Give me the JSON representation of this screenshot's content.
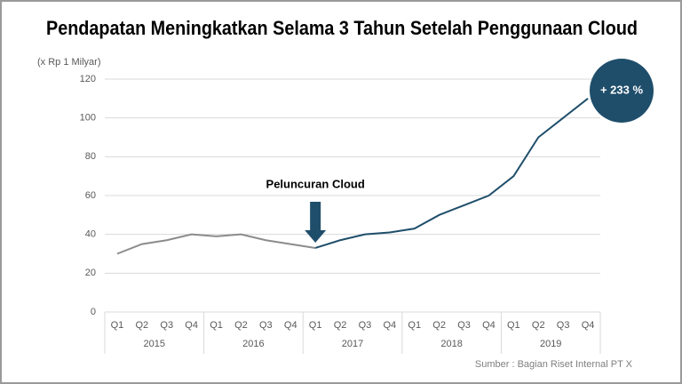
{
  "chart_data": {
    "type": "line",
    "title": "Pendapatan Meningkatkan Selama 3 Tahun Setelah Penggunaan Cloud",
    "y_unit": "(x Rp 1 Milyar)",
    "categories": [
      "Q1",
      "Q2",
      "Q3",
      "Q4",
      "Q1",
      "Q2",
      "Q3",
      "Q4",
      "Q1",
      "Q2",
      "Q3",
      "Q4",
      "Q1",
      "Q2",
      "Q3",
      "Q4",
      "Q1",
      "Q2",
      "Q3",
      "Q4"
    ],
    "years": [
      "2015",
      "2016",
      "2017",
      "2018",
      "2019"
    ],
    "series": [
      {
        "color": "#8c8c8c",
        "values": [
          30,
          35,
          37,
          40,
          39,
          40,
          37,
          35,
          33,
          null,
          null,
          null,
          null,
          null,
          null,
          null,
          null,
          null,
          null,
          null
        ]
      },
      {
        "color": "#1f4e6b",
        "values": [
          null,
          null,
          null,
          null,
          null,
          null,
          null,
          null,
          33,
          37,
          40,
          41,
          43,
          50,
          55,
          60,
          70,
          90,
          100,
          110
        ]
      }
    ],
    "ylim": [
      0,
      120
    ],
    "yticks": [
      0,
      20,
      40,
      60,
      80,
      100,
      120
    ],
    "grid": true,
    "annotation": "Peluncuran Cloud",
    "badge": "+ 233 %",
    "source": "Sumber : Bagian Riset Internal PT X"
  }
}
